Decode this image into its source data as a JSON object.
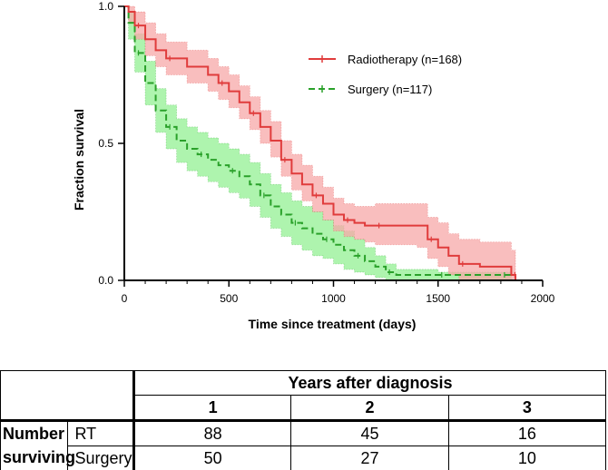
{
  "chart_data": {
    "type": "line",
    "subtype": "kaplan-meier",
    "xlabel": "Time since treatment (days)",
    "ylabel": "Fraction survival",
    "xlim": [
      0,
      2000
    ],
    "ylim": [
      0,
      1
    ],
    "xticks": [
      0,
      500,
      1000,
      1500,
      2000
    ],
    "xtick_labels": [
      "0",
      "500",
      "1000",
      "1500",
      "2000"
    ],
    "yticks": [
      0,
      0.5,
      1
    ],
    "ytick_labels": [
      "0.0",
      "0.5",
      "1.0"
    ],
    "legend_position": "top-right",
    "series": [
      {
        "name": "Radiotherapy (n=168)",
        "color": "#e03c3c",
        "band_color": "#f7a8a8",
        "style": "solid",
        "x": [
          0,
          20,
          50,
          100,
          150,
          200,
          300,
          400,
          450,
          500,
          550,
          600,
          650,
          700,
          750,
          800,
          850,
          900,
          950,
          1000,
          1050,
          1100,
          1150,
          1200,
          1300,
          1400,
          1450,
          1500,
          1550,
          1600,
          1700,
          1800,
          1850,
          1870
        ],
        "y": [
          1.0,
          0.98,
          0.93,
          0.88,
          0.84,
          0.81,
          0.78,
          0.75,
          0.72,
          0.69,
          0.65,
          0.61,
          0.56,
          0.51,
          0.44,
          0.39,
          0.35,
          0.31,
          0.28,
          0.24,
          0.22,
          0.21,
          0.2,
          0.2,
          0.2,
          0.2,
          0.15,
          0.12,
          0.09,
          0.06,
          0.05,
          0.05,
          0.02,
          0.0
        ],
        "ci_upper": [
          1.0,
          1.0,
          0.98,
          0.94,
          0.9,
          0.87,
          0.84,
          0.81,
          0.78,
          0.75,
          0.71,
          0.67,
          0.62,
          0.58,
          0.51,
          0.46,
          0.42,
          0.38,
          0.34,
          0.3,
          0.28,
          0.27,
          0.27,
          0.28,
          0.28,
          0.28,
          0.23,
          0.21,
          0.17,
          0.15,
          0.14,
          0.14,
          0.11,
          0.05
        ],
        "ci_lower": [
          1.0,
          0.94,
          0.88,
          0.82,
          0.78,
          0.75,
          0.72,
          0.69,
          0.66,
          0.63,
          0.59,
          0.55,
          0.5,
          0.45,
          0.38,
          0.33,
          0.29,
          0.25,
          0.22,
          0.18,
          0.16,
          0.15,
          0.14,
          0.13,
          0.13,
          0.12,
          0.08,
          0.05,
          0.02,
          0.0,
          0.0,
          0.0,
          0.0,
          0.0
        ]
      },
      {
        "name": "Surgery (n=117)",
        "color": "#2aa12a",
        "band_color": "#8cef8c",
        "style": "dashed",
        "x": [
          0,
          20,
          50,
          100,
          150,
          200,
          250,
          300,
          350,
          400,
          450,
          500,
          550,
          600,
          650,
          700,
          750,
          800,
          850,
          900,
          950,
          1000,
          1050,
          1100,
          1150,
          1200,
          1250,
          1300,
          1400,
          1500,
          1600,
          1700,
          1800,
          1850
        ],
        "y": [
          1.0,
          0.94,
          0.83,
          0.72,
          0.62,
          0.56,
          0.51,
          0.48,
          0.46,
          0.44,
          0.42,
          0.4,
          0.38,
          0.35,
          0.31,
          0.27,
          0.24,
          0.21,
          0.19,
          0.17,
          0.15,
          0.13,
          0.11,
          0.09,
          0.07,
          0.05,
          0.03,
          0.02,
          0.02,
          0.02,
          0.02,
          0.02,
          0.02,
          0.02
        ],
        "ci_upper": [
          1.0,
          0.98,
          0.9,
          0.8,
          0.7,
          0.64,
          0.59,
          0.56,
          0.54,
          0.52,
          0.5,
          0.48,
          0.46,
          0.43,
          0.39,
          0.35,
          0.32,
          0.29,
          0.27,
          0.25,
          0.22,
          0.2,
          0.18,
          0.15,
          0.12,
          0.09,
          0.06,
          0.04,
          0.04,
          0.03,
          0.03,
          0.03,
          0.03,
          0.03
        ],
        "ci_lower": [
          1.0,
          0.88,
          0.76,
          0.64,
          0.54,
          0.48,
          0.43,
          0.4,
          0.38,
          0.36,
          0.34,
          0.32,
          0.3,
          0.27,
          0.23,
          0.19,
          0.16,
          0.13,
          0.11,
          0.09,
          0.08,
          0.06,
          0.04,
          0.03,
          0.02,
          0.01,
          0.0,
          0.0,
          0.0,
          0.0,
          0.0,
          0.0,
          0.0,
          0.0
        ]
      }
    ]
  },
  "table": {
    "header_title": "Years after diagnosis",
    "years": [
      "1",
      "2",
      "3"
    ],
    "row_label_line1": "Number",
    "row_label_line2": "surviving",
    "rows": [
      {
        "group": "RT",
        "values": [
          "88",
          "45",
          "16"
        ]
      },
      {
        "group": "Surgery",
        "values": [
          "50",
          "27",
          "10"
        ]
      }
    ]
  }
}
